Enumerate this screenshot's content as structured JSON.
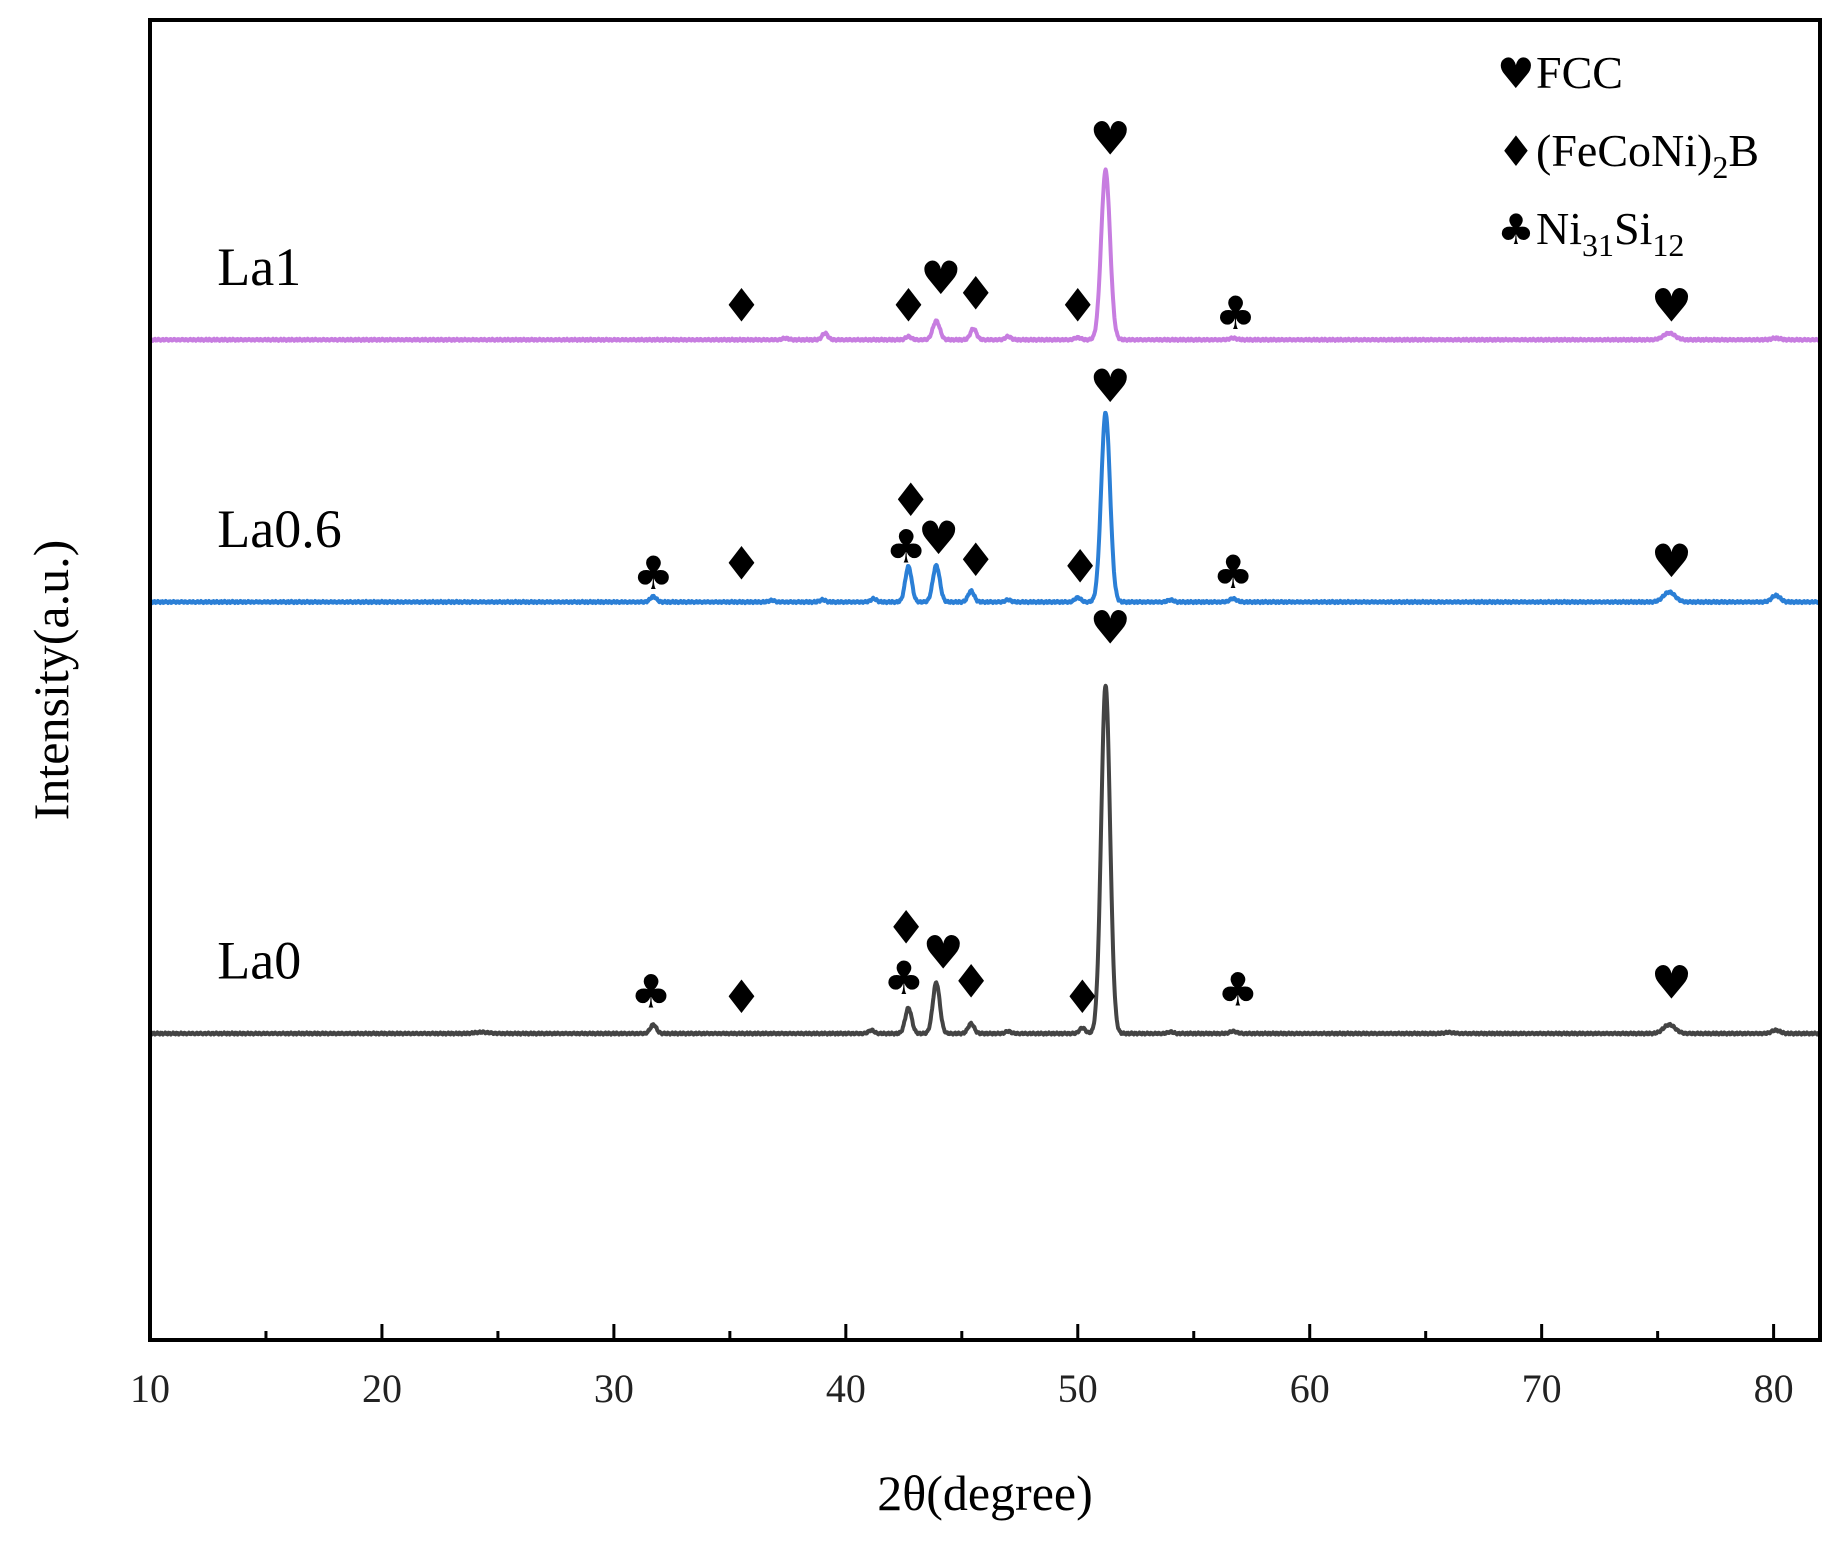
{
  "chart_data": {
    "type": "line",
    "title": "",
    "xlabel": "2θ(degree)",
    "ylabel": "Intensity(a.u.)",
    "xlim": [
      10,
      82
    ],
    "xticks": [
      10,
      20,
      30,
      40,
      50,
      60,
      70,
      80
    ],
    "x_minor_step": 5,
    "grid": false,
    "legend": {
      "placement": "top-right",
      "items": [
        {
          "symbol": "♥",
          "phase": "fcc",
          "parts": [
            {
              "t": "FCC",
              "sub": false
            }
          ]
        },
        {
          "symbol": "♦",
          "phase": "boride",
          "parts": [
            {
              "t": "(FeCoNi)",
              "sub": false
            },
            {
              "t": "2",
              "sub": true
            },
            {
              "t": "B",
              "sub": false
            }
          ]
        },
        {
          "symbol": "♣",
          "phase": "silicide",
          "parts": [
            {
              "t": "Ni",
              "sub": false
            },
            {
              "t": "31",
              "sub": true
            },
            {
              "t": "Si",
              "sub": false
            },
            {
              "t": "12",
              "sub": true
            }
          ]
        }
      ]
    },
    "phase_symbols": {
      "fcc": "♥",
      "boride": "♦",
      "silicide": "♣"
    },
    "series": [
      {
        "name": "La1",
        "color": "#c77de0",
        "baseline": 0.94,
        "peaks": [
          {
            "x": 37.4,
            "h": 0.015,
            "w": 0.12
          },
          {
            "x": 39.1,
            "h": 0.06,
            "w": 0.12
          },
          {
            "x": 42.7,
            "h": 0.03,
            "w": 0.12
          },
          {
            "x": 43.9,
            "h": 0.17,
            "w": 0.15
          },
          {
            "x": 45.5,
            "h": 0.1,
            "w": 0.13
          },
          {
            "x": 47.0,
            "h": 0.03,
            "w": 0.12
          },
          {
            "x": 50.0,
            "h": 0.02,
            "w": 0.13
          },
          {
            "x": 51.2,
            "h": 1.53,
            "w": 0.19
          },
          {
            "x": 56.7,
            "h": 0.015,
            "w": 0.15
          },
          {
            "x": 75.5,
            "h": 0.06,
            "w": 0.25
          },
          {
            "x": 80.1,
            "h": 0.015,
            "w": 0.18
          }
        ],
        "markers": [
          {
            "phase": "boride",
            "x": 35.5,
            "y": 1.25
          },
          {
            "phase": "boride",
            "x": 42.7,
            "y": 1.25
          },
          {
            "phase": "fcc",
            "x": 44.1,
            "y": 1.5
          },
          {
            "phase": "boride",
            "x": 45.6,
            "y": 1.36
          },
          {
            "phase": "boride",
            "x": 50.0,
            "y": 1.25
          },
          {
            "phase": "fcc",
            "x": 51.4,
            "y": 2.76
          },
          {
            "phase": "silicide",
            "x": 56.8,
            "y": 1.18
          },
          {
            "phase": "fcc",
            "x": 75.6,
            "y": 1.25
          }
        ]
      },
      {
        "name": "La0.6",
        "color": "#2b7fd6",
        "baseline": -1.43,
        "peaks": [
          {
            "x": 31.7,
            "h": 0.05,
            "w": 0.13
          },
          {
            "x": 36.8,
            "h": 0.015,
            "w": 0.12
          },
          {
            "x": 39.0,
            "h": 0.02,
            "w": 0.12
          },
          {
            "x": 41.2,
            "h": 0.03,
            "w": 0.12
          },
          {
            "x": 42.7,
            "h": 0.32,
            "w": 0.14
          },
          {
            "x": 43.9,
            "h": 0.33,
            "w": 0.15
          },
          {
            "x": 45.4,
            "h": 0.1,
            "w": 0.13
          },
          {
            "x": 47.0,
            "h": 0.02,
            "w": 0.12
          },
          {
            "x": 50.0,
            "h": 0.04,
            "w": 0.13
          },
          {
            "x": 51.2,
            "h": 1.71,
            "w": 0.19
          },
          {
            "x": 54.0,
            "h": 0.02,
            "w": 0.12
          },
          {
            "x": 56.7,
            "h": 0.03,
            "w": 0.15
          },
          {
            "x": 75.5,
            "h": 0.09,
            "w": 0.25
          },
          {
            "x": 80.1,
            "h": 0.06,
            "w": 0.18
          }
        ],
        "markers": [
          {
            "phase": "silicide",
            "x": 31.7,
            "y": -1.17
          },
          {
            "phase": "boride",
            "x": 35.5,
            "y": -1.08
          },
          {
            "phase": "boride",
            "x": 42.8,
            "y": -0.51
          },
          {
            "phase": "silicide",
            "x": 42.6,
            "y": -0.93
          },
          {
            "phase": "fcc",
            "x": 44.0,
            "y": -0.85
          },
          {
            "phase": "boride",
            "x": 45.6,
            "y": -1.05
          },
          {
            "phase": "boride",
            "x": 50.1,
            "y": -1.11
          },
          {
            "phase": "fcc",
            "x": 51.4,
            "y": 0.52
          },
          {
            "phase": "silicide",
            "x": 56.7,
            "y": -1.16
          },
          {
            "phase": "fcc",
            "x": 75.6,
            "y": -1.06
          }
        ]
      },
      {
        "name": "La0",
        "color": "#444444",
        "baseline": -5.33,
        "peaks": [
          {
            "x": 24.3,
            "h": 0.012,
            "w": 0.3
          },
          {
            "x": 31.7,
            "h": 0.08,
            "w": 0.13
          },
          {
            "x": 41.1,
            "h": 0.03,
            "w": 0.12
          },
          {
            "x": 42.7,
            "h": 0.23,
            "w": 0.14
          },
          {
            "x": 43.9,
            "h": 0.46,
            "w": 0.15
          },
          {
            "x": 45.4,
            "h": 0.09,
            "w": 0.13
          },
          {
            "x": 47.0,
            "h": 0.02,
            "w": 0.12
          },
          {
            "x": 50.2,
            "h": 0.05,
            "w": 0.13
          },
          {
            "x": 51.2,
            "h": 3.15,
            "w": 0.19
          },
          {
            "x": 54.0,
            "h": 0.015,
            "w": 0.12
          },
          {
            "x": 56.7,
            "h": 0.02,
            "w": 0.15
          },
          {
            "x": 66.0,
            "h": 0.01,
            "w": 0.2
          },
          {
            "x": 75.5,
            "h": 0.08,
            "w": 0.25
          },
          {
            "x": 80.1,
            "h": 0.03,
            "w": 0.18
          }
        ],
        "markers": [
          {
            "phase": "silicide",
            "x": 31.6,
            "y": -4.95
          },
          {
            "phase": "boride",
            "x": 35.5,
            "y": -5.0
          },
          {
            "phase": "boride",
            "x": 42.6,
            "y": -4.37
          },
          {
            "phase": "silicide",
            "x": 42.5,
            "y": -4.83
          },
          {
            "phase": "fcc",
            "x": 44.2,
            "y": -4.6
          },
          {
            "phase": "boride",
            "x": 45.4,
            "y": -4.86
          },
          {
            "phase": "boride",
            "x": 50.2,
            "y": -5.0
          },
          {
            "phase": "fcc",
            "x": 51.4,
            "y": -1.66
          },
          {
            "phase": "silicide",
            "x": 56.9,
            "y": -4.93
          },
          {
            "phase": "fcc",
            "x": 75.6,
            "y": -4.87
          }
        ]
      }
    ],
    "ylim": [
      -8.1,
      3.83
    ]
  }
}
